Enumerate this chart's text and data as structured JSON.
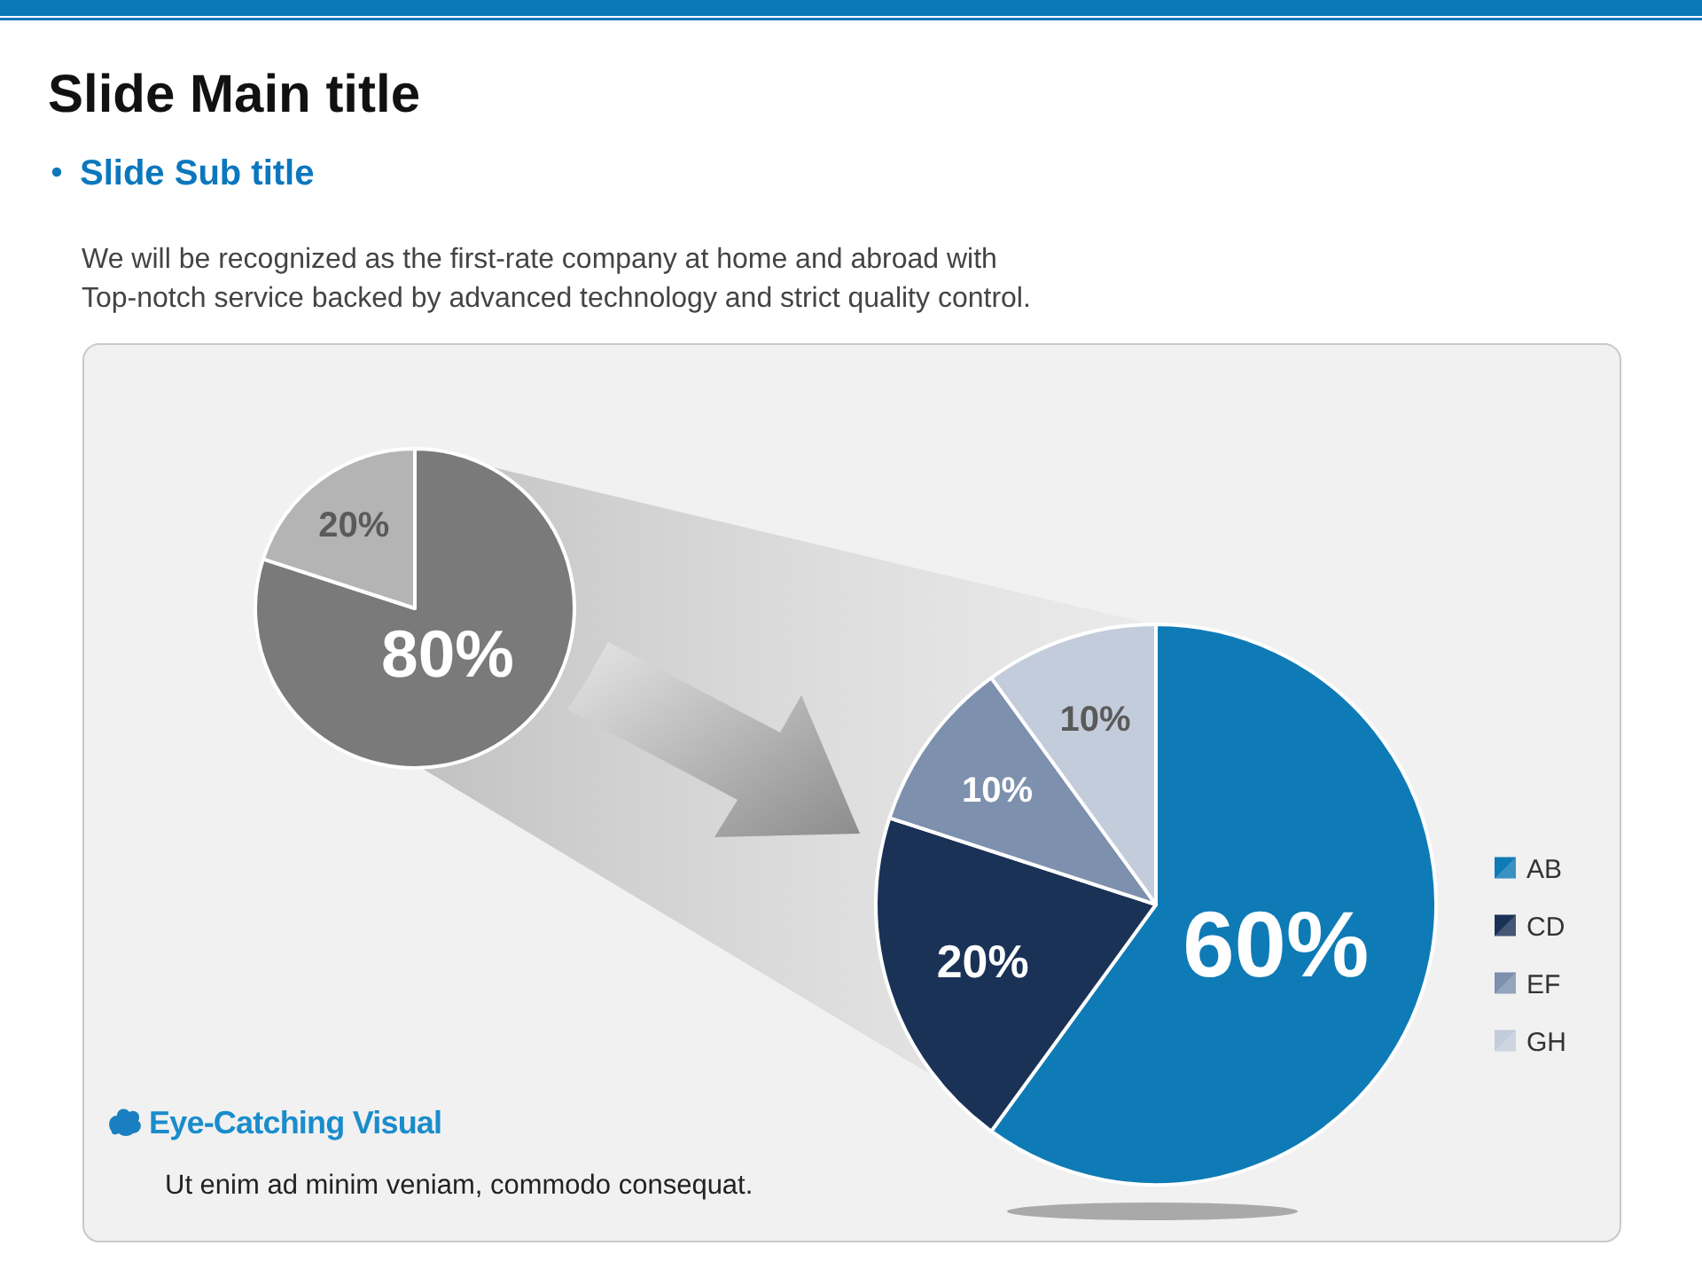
{
  "chart_data": [
    {
      "type": "pie",
      "title": "Slide Main title",
      "subtitle": "Slide Sub title",
      "annotations": [
        "We will be recognized as the first-rate company at home and abroad with",
        "Top-notch service backed by advanced technology and strict quality control.",
        "Eye-Catching Visual",
        "Ut enim ad minim veniam, commodo consequat."
      ],
      "categories": [
        null,
        null
      ],
      "values": [
        80,
        20
      ],
      "colors": [
        "#7a7a7a",
        "#b4b4b4"
      ],
      "value_labels": [
        "80%",
        "20%"
      ]
    },
    {
      "type": "pie",
      "categories": [
        "AB",
        "CD",
        "EF",
        "GH"
      ],
      "values": [
        60,
        20,
        10,
        10
      ],
      "colors": [
        "#0f7bb6",
        "#1b3257",
        "#7d90ae",
        "#c3ccdb"
      ],
      "value_labels": [
        "60%",
        "20%",
        "10%",
        "10%"
      ],
      "legend": "right"
    }
  ]
}
